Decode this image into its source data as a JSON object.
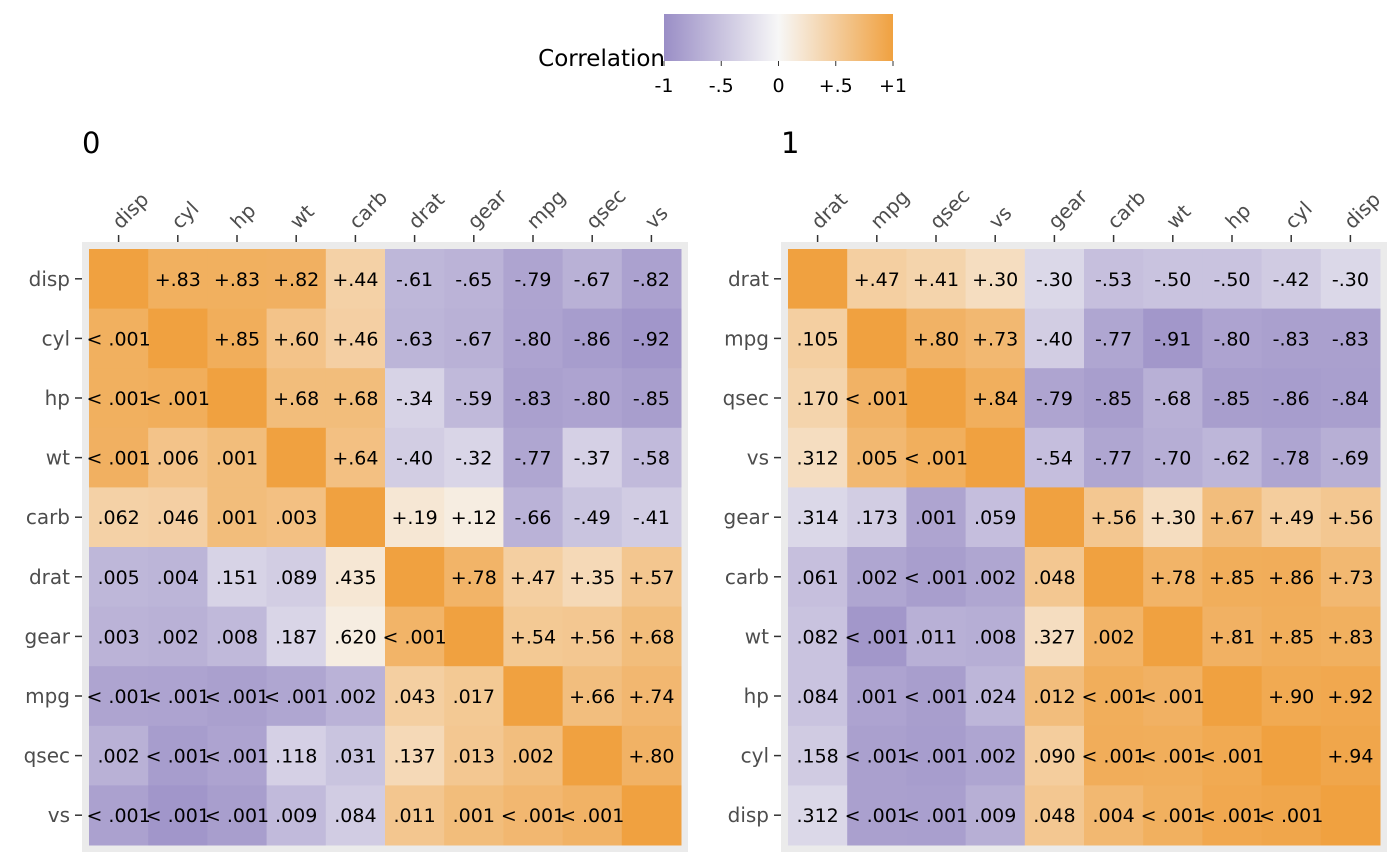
{
  "legend": {
    "title": "Correlation",
    "tick_labels": [
      "-1",
      "-.5",
      "0",
      "+.5",
      "+1"
    ],
    "tick_values": [
      -1,
      -0.5,
      0,
      0.5,
      1
    ],
    "placement": "top"
  },
  "colors": {
    "negative": "#9a8ec6",
    "neutral": "#f7f7f7",
    "positive": "#f0a140",
    "panel_background": "#ebebeb",
    "text": "#000000",
    "axis_text": "#4d4d4d"
  },
  "chart_data": [
    {
      "type": "heatmap",
      "panel_title": "0",
      "variables": [
        "disp",
        "cyl",
        "hp",
        "wt",
        "carb",
        "drat",
        "gear",
        "mpg",
        "qsec",
        "vs"
      ],
      "grid": false,
      "note_upper": "upper triangle holds correlations (r); lower triangle holds p-values",
      "cells": [
        [
          "",
          "+.83",
          "+.83",
          "+.82",
          "+.44",
          "-.61",
          "-.65",
          "-.79",
          "-.67",
          "-.82"
        ],
        [
          "< .001",
          "",
          "+.85",
          "+.60",
          "+.46",
          "-.63",
          "-.67",
          "-.80",
          "-.86",
          "-.92"
        ],
        [
          "< .001",
          "< .001",
          "",
          "+.68",
          "+.68",
          "-.34",
          "-.59",
          "-.83",
          "-.80",
          "-.85"
        ],
        [
          "< .001",
          ".006",
          ".001",
          "",
          "+.64",
          "-.40",
          "-.32",
          "-.77",
          "-.37",
          "-.58"
        ],
        [
          ".062",
          ".046",
          ".001",
          ".003",
          "",
          "+.19",
          "+.12",
          "-.66",
          "-.49",
          "-.41"
        ],
        [
          ".005",
          ".004",
          ".151",
          ".089",
          ".435",
          "",
          "+.78",
          "+.47",
          "+.35",
          "+.57"
        ],
        [
          ".003",
          ".002",
          ".008",
          ".187",
          ".620",
          "< .001",
          "",
          "+.54",
          "+.56",
          "+.68"
        ],
        [
          "< .001",
          "< .001",
          "< .001",
          "< .001",
          ".002",
          ".043",
          ".017",
          "",
          "+.66",
          "+.74"
        ],
        [
          ".002",
          "< .001",
          "< .001",
          ".118",
          ".031",
          ".137",
          ".013",
          ".002",
          "",
          "+.80"
        ],
        [
          "< .001",
          "< .001",
          "< .001",
          ".009",
          ".084",
          ".011",
          ".001",
          "< .001",
          "< .001",
          ""
        ]
      ]
    },
    {
      "type": "heatmap",
      "panel_title": "1",
      "variables": [
        "drat",
        "mpg",
        "qsec",
        "vs",
        "gear",
        "carb",
        "wt",
        "hp",
        "cyl",
        "disp"
      ],
      "grid": false,
      "cells": [
        [
          "",
          "+.47",
          "+.41",
          "+.30",
          "-.30",
          "-.53",
          "-.50",
          "-.50",
          "-.42",
          "-.30"
        ],
        [
          ".105",
          "",
          "+.80",
          "+.73",
          "-.40",
          "-.77",
          "-.91",
          "-.80",
          "-.83",
          "-.83"
        ],
        [
          ".170",
          "< .001",
          "",
          "+.84",
          "-.79",
          "-.85",
          "-.68",
          "-.85",
          "-.86",
          "-.84"
        ],
        [
          ".312",
          ".005",
          "< .001",
          "",
          "-.54",
          "-.77",
          "-.70",
          "-.62",
          "-.78",
          "-.69"
        ],
        [
          ".314",
          ".173",
          ".001",
          ".059",
          "",
          "+.56",
          "+.30",
          "+.67",
          "+.49",
          "+.56"
        ],
        [
          ".061",
          ".002",
          "< .001",
          ".002",
          ".048",
          "",
          "+.78",
          "+.85",
          "+.86",
          "+.73"
        ],
        [
          ".082",
          "< .001",
          ".011",
          ".008",
          ".327",
          ".002",
          "",
          "+.81",
          "+.85",
          "+.83"
        ],
        [
          ".084",
          ".001",
          "< .001",
          ".024",
          ".012",
          "< .001",
          "< .001",
          "",
          "+.90",
          "+.92"
        ],
        [
          ".158",
          "< .001",
          "< .001",
          ".002",
          ".090",
          "< .001",
          "< .001",
          "< .001",
          "",
          "+.94"
        ],
        [
          ".312",
          "< .001",
          "< .001",
          ".009",
          ".048",
          ".004",
          "< .001",
          "< .001",
          "< .001",
          ""
        ]
      ]
    }
  ]
}
